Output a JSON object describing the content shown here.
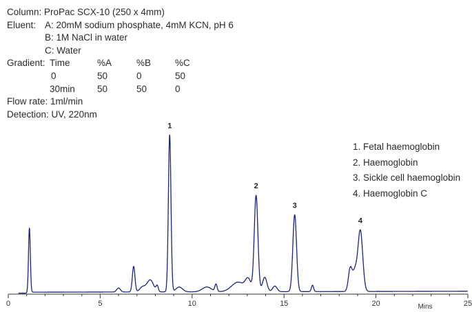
{
  "conditions": {
    "column": "Column: ProPac SCX-10 (250 x 4mm)",
    "eluent_label": "Eluent:",
    "eluent_a": "A: 20mM sodium phosphate, 4mM KCN, pH 6",
    "eluent_b": "B: 1M NaCl in water",
    "eluent_c": "C: Water",
    "gradient_label": "Gradient:",
    "gradient_header": [
      "Time",
      "%A",
      "%B",
      "%C"
    ],
    "gradient_rows": [
      [
        "0",
        "50",
        "0",
        "50"
      ],
      [
        "30min",
        "50",
        "50",
        "0"
      ]
    ],
    "flow_rate": "Flow rate: 1ml/min",
    "detection": "Detection: UV, 220nm"
  },
  "legend": [
    "1. Fetal haemoglobin",
    "2. Haemoglobin",
    "3. Sickle cell haemoglobin",
    "4. Haemoglobin C"
  ],
  "chart_data": {
    "type": "line",
    "xlabel": "Mins",
    "ylabel": "",
    "xlim": [
      0,
      25
    ],
    "x_ticks": [
      0,
      5,
      10,
      15,
      20,
      25
    ],
    "ylim": [
      0,
      1
    ],
    "grid": false,
    "line_color": "#1a237e",
    "baseline": 0.012,
    "peaks": [
      {
        "label": "",
        "x": 1.15,
        "height": 0.4,
        "width": 0.05
      },
      {
        "label": "",
        "x": 6.0,
        "height": 0.025,
        "width": 0.1
      },
      {
        "label": "",
        "x": 6.82,
        "height": 0.16,
        "width": 0.07
      },
      {
        "label": "",
        "x": 7.3,
        "height": 0.03,
        "width": 0.15
      },
      {
        "label": "",
        "x": 7.72,
        "height": 0.075,
        "width": 0.18
      },
      {
        "label": "",
        "x": 8.1,
        "height": 0.035,
        "width": 0.06
      },
      {
        "label": "1",
        "x": 8.78,
        "height": 0.98,
        "width": 0.07
      },
      {
        "label": "",
        "x": 9.3,
        "height": 0.03,
        "width": 0.18
      },
      {
        "label": "",
        "x": 10.8,
        "height": 0.03,
        "width": 0.25
      },
      {
        "label": "",
        "x": 11.3,
        "height": 0.045,
        "width": 0.06
      },
      {
        "label": "",
        "x": 12.5,
        "height": 0.06,
        "width": 0.35
      },
      {
        "label": "",
        "x": 13.05,
        "height": 0.07,
        "width": 0.15
      },
      {
        "label": "2",
        "x": 13.48,
        "height": 0.6,
        "width": 0.1
      },
      {
        "label": "",
        "x": 13.95,
        "height": 0.09,
        "width": 0.12
      },
      {
        "label": "",
        "x": 14.5,
        "height": 0.035,
        "width": 0.12
      },
      {
        "label": "3",
        "x": 15.58,
        "height": 0.48,
        "width": 0.1
      },
      {
        "label": "",
        "x": 16.55,
        "height": 0.04,
        "width": 0.06
      },
      {
        "label": "",
        "x": 18.6,
        "height": 0.14,
        "width": 0.1
      },
      {
        "label": "4",
        "x": 19.15,
        "height": 0.38,
        "width": 0.13
      },
      {
        "label": "",
        "x": 18.85,
        "height": 0.12,
        "width": 0.12
      }
    ]
  }
}
